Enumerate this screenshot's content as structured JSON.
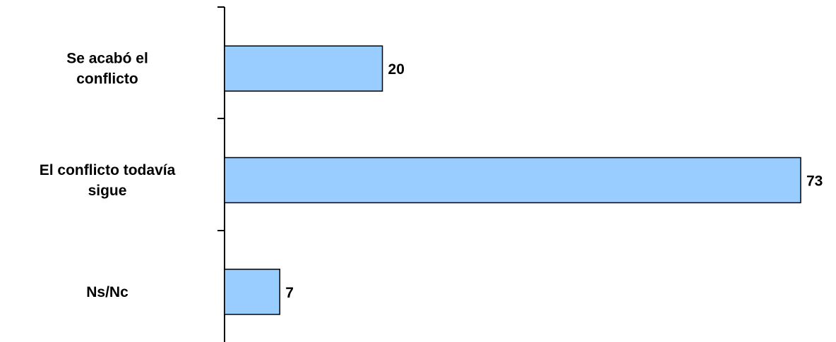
{
  "chart_data": {
    "type": "bar",
    "orientation": "horizontal",
    "categories": [
      [
        "Se acabó el",
        "conflicto"
      ],
      [
        "El conflicto todavía",
        "sigue"
      ],
      [
        "Ns/Nc"
      ]
    ],
    "values": [
      20,
      73,
      7
    ],
    "xlim": [
      0,
      73
    ],
    "grid": false,
    "legend": "none",
    "bar_color": "#99ccff",
    "bar_edge_color": "#000000"
  }
}
